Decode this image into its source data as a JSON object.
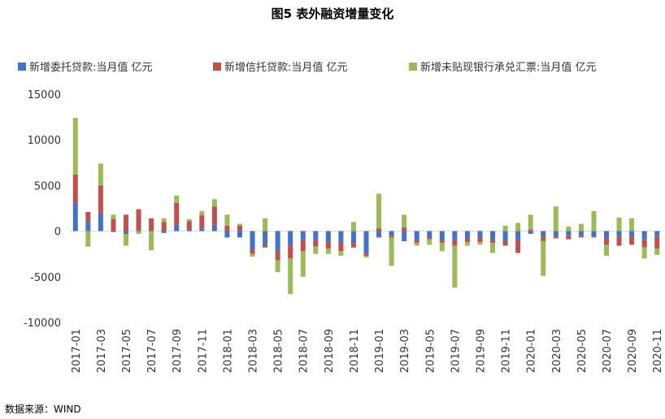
{
  "title": "图5   表外融资增量变化",
  "source": "数据来源：WIND",
  "colors": {
    "wt": "#4472C4",
    "xt": "#C0504D",
    "pj": "#9BBB59"
  },
  "chart_data": {
    "type": "bar",
    "stacked": true,
    "title": "图5   表外融资增量变化",
    "ylim": [
      -10000,
      15000
    ],
    "yticks": [
      -10000,
      -5000,
      0,
      5000,
      10000,
      15000
    ],
    "legend_position": "top",
    "categories": [
      "2017-01",
      "2017-02",
      "2017-03",
      "2017-04",
      "2017-05",
      "2017-06",
      "2017-07",
      "2017-08",
      "2017-09",
      "2017-10",
      "2017-11",
      "2017-12",
      "2018-01",
      "2018-02",
      "2018-03",
      "2018-04",
      "2018-05",
      "2018-06",
      "2018-07",
      "2018-08",
      "2018-09",
      "2018-10",
      "2018-11",
      "2018-12",
      "2019-01",
      "2019-02",
      "2019-03",
      "2019-04",
      "2019-05",
      "2019-06",
      "2019-07",
      "2019-08",
      "2019-09",
      "2019-10",
      "2019-11",
      "2019-12",
      "2020-01",
      "2020-02",
      "2020-03",
      "2020-04",
      "2020-05",
      "2020-06",
      "2020-07",
      "2020-08",
      "2020-09",
      "2020-10",
      "2020-11"
    ],
    "tick_labels": [
      "2017-01",
      "2017-03",
      "2017-05",
      "2017-07",
      "2017-09",
      "2017-11",
      "2018-01",
      "2018-03",
      "2018-05",
      "2018-07",
      "2018-09",
      "2018-11",
      "2019-01",
      "2019-03",
      "2019-05",
      "2019-07",
      "2019-09",
      "2019-11",
      "2020-01",
      "2020-03",
      "2020-05",
      "2020-07",
      "2020-09",
      "2020-11"
    ],
    "series": [
      {
        "name": "新增委托贷款:当月值 亿元",
        "key": "wt",
        "values": [
          3100,
          1100,
          2000,
          -100,
          -300,
          100,
          100,
          -200,
          700,
          200,
          300,
          700,
          -700,
          -700,
          -2000,
          -1500,
          -2200,
          -1600,
          -1000,
          -1000,
          -1200,
          -1200,
          -1300,
          -2400,
          -700,
          -500,
          -1100,
          -1000,
          -700,
          -1000,
          -1000,
          -800,
          -700,
          -1000,
          -1100,
          -1000,
          -300,
          -600,
          -600,
          -500,
          -500,
          -600,
          -800,
          -600,
          -600,
          -1000,
          -600
        ]
      },
      {
        "name": "新增信托贷款:当月值 亿元",
        "key": "xt",
        "values": [
          3100,
          1000,
          3000,
          1300,
          1800,
          2300,
          1300,
          1000,
          2400,
          900,
          1400,
          2000,
          600,
          600,
          -500,
          -300,
          -1000,
          -1400,
          -1200,
          -700,
          -700,
          -1000,
          -500,
          -300,
          300,
          -200,
          400,
          -300,
          -200,
          -300,
          -600,
          -400,
          -500,
          -300,
          -500,
          -1400,
          200,
          -500,
          -200,
          -400,
          -200,
          -100,
          -700,
          -1000,
          -900,
          -800,
          -1300
        ]
      },
      {
        "name": "新增未贴现银行承兑汇票:当月值 亿元",
        "key": "pj",
        "values": [
          6200,
          -1700,
          2400,
          500,
          -1300,
          -300,
          -2100,
          400,
          800,
          200,
          500,
          800,
          1200,
          200,
          -300,
          1400,
          -1300,
          -3900,
          -2800,
          -800,
          -600,
          -500,
          1000,
          -200,
          3800,
          -3100,
          1400,
          -300,
          -600,
          -900,
          -4600,
          -400,
          -300,
          -1100,
          600,
          900,
          1600,
          -3800,
          2700,
          500,
          800,
          2200,
          -1200,
          1500,
          1400,
          -1200,
          -700
        ]
      }
    ]
  }
}
